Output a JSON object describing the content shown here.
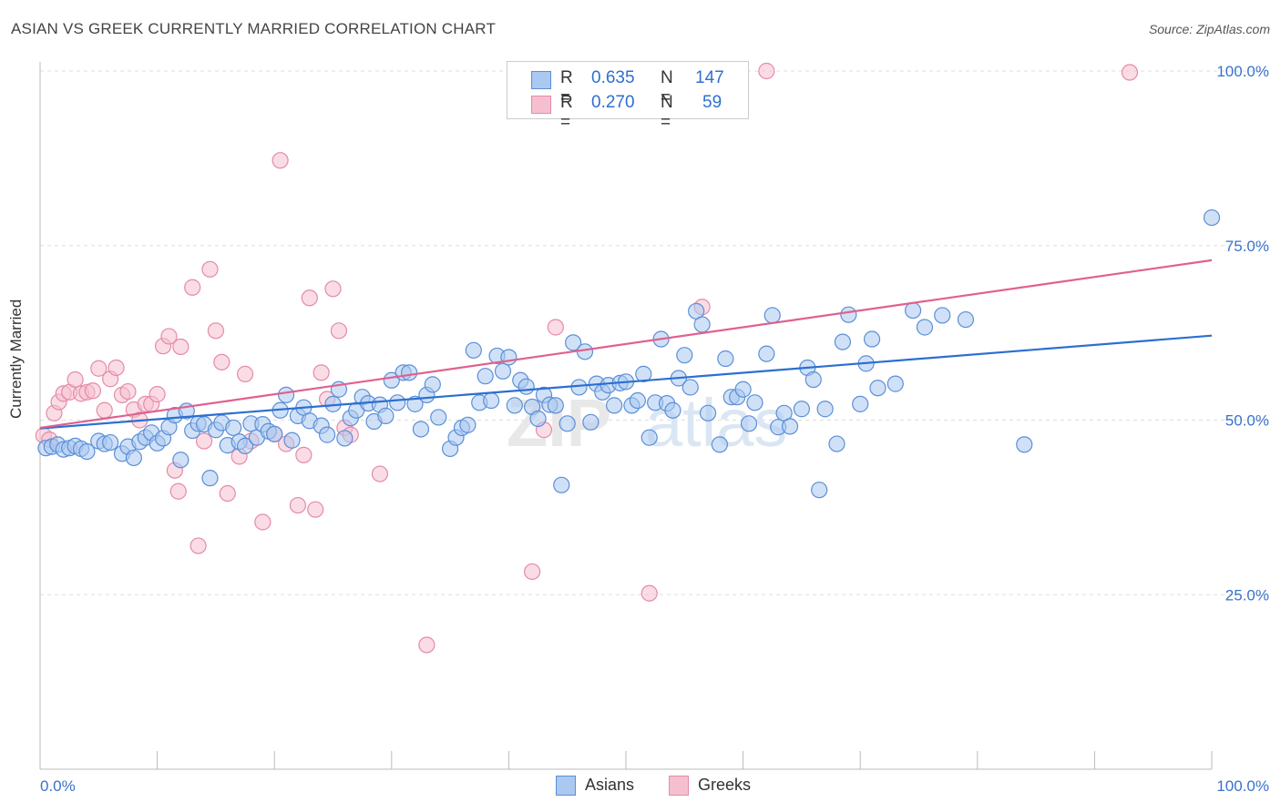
{
  "title": "ASIAN VS GREEK CURRENTLY MARRIED CORRELATION CHART",
  "source": "Source: ZipAtlas.com",
  "watermark": "ZIPatlas",
  "colors": {
    "asian_fill": "#aac8f0",
    "asian_stroke": "#5b8fd8",
    "asian_line": "#2b6fd0",
    "greek_fill": "#f6bfd0",
    "greek_stroke": "#e58aa8",
    "greek_line": "#e0608f",
    "tick_text": "#3a72c9"
  },
  "legend": {
    "rows": [
      {
        "r_label": "R =",
        "r_value": "0.635",
        "n_label": "N =",
        "n_value": "147"
      },
      {
        "r_label": "R =",
        "r_value": "0.270",
        "n_label": "N =",
        "n_value": "59"
      }
    ]
  },
  "bottom_legend": [
    "Asians",
    "Greeks"
  ],
  "chart_data": {
    "type": "scatter",
    "title": "ASIAN VS GREEK CURRENTLY MARRIED CORRELATION CHART",
    "xlabel": "",
    "ylabel": "Currently Married",
    "xlim": [
      0,
      100
    ],
    "ylim": [
      0,
      100
    ],
    "x_tick_labels": [
      "0.0%",
      "100.0%"
    ],
    "y_tick_labels": [
      "25.0%",
      "50.0%",
      "75.0%",
      "100.0%"
    ],
    "y_ticks": [
      25,
      50,
      75,
      100
    ],
    "grid": "horizontal dashed",
    "legend_position": "top-center",
    "series": [
      {
        "name": "Asians",
        "r": 0.635,
        "n": 147,
        "trend": {
          "y_at_0": 48.8,
          "y_at_100": 62.1
        },
        "points": [
          [
            0.5,
            46
          ],
          [
            1,
            46.2
          ],
          [
            1.5,
            46.5
          ],
          [
            2,
            45.8
          ],
          [
            2.5,
            46
          ],
          [
            3,
            46.3
          ],
          [
            3.5,
            45.9
          ],
          [
            4,
            45.5
          ],
          [
            5,
            47
          ],
          [
            5.5,
            46.6
          ],
          [
            6,
            46.8
          ],
          [
            7,
            45.2
          ],
          [
            7.5,
            46.2
          ],
          [
            8,
            44.6
          ],
          [
            8.5,
            46.9
          ],
          [
            9,
            47.5
          ],
          [
            9.5,
            48.2
          ],
          [
            10,
            46.7
          ],
          [
            10.5,
            47.4
          ],
          [
            11,
            49
          ],
          [
            11.5,
            50.7
          ],
          [
            12,
            44.3
          ],
          [
            12.5,
            51.3
          ],
          [
            13,
            48.5
          ],
          [
            13.5,
            49.5
          ],
          [
            14,
            49.4
          ],
          [
            14.5,
            41.7
          ],
          [
            15,
            48.6
          ],
          [
            15.5,
            49.6
          ],
          [
            16,
            46.4
          ],
          [
            16.5,
            48.9
          ],
          [
            17,
            46.9
          ],
          [
            17.5,
            46.3
          ],
          [
            18,
            49.5
          ],
          [
            18.5,
            47.5
          ],
          [
            19,
            49.4
          ],
          [
            19.5,
            48.4
          ],
          [
            20,
            48
          ],
          [
            20.5,
            51.4
          ],
          [
            21,
            53.6
          ],
          [
            21.5,
            47.1
          ],
          [
            22,
            50.6
          ],
          [
            22.5,
            51.8
          ],
          [
            23,
            49.9
          ],
          [
            24,
            49.2
          ],
          [
            24.5,
            47.9
          ],
          [
            25,
            52.3
          ],
          [
            25.5,
            54.4
          ],
          [
            26,
            47.4
          ],
          [
            26.5,
            50.3
          ],
          [
            27,
            51.4
          ],
          [
            27.5,
            53.3
          ],
          [
            28,
            52.4
          ],
          [
            28.5,
            49.8
          ],
          [
            29,
            52.2
          ],
          [
            29.5,
            50.6
          ],
          [
            30,
            55.7
          ],
          [
            30.5,
            52.5
          ],
          [
            31,
            56.8
          ],
          [
            31.5,
            56.8
          ],
          [
            32,
            52.3
          ],
          [
            32.5,
            48.7
          ],
          [
            33,
            53.6
          ],
          [
            33.5,
            55.1
          ],
          [
            34,
            50.4
          ],
          [
            35,
            45.9
          ],
          [
            35.5,
            47.5
          ],
          [
            36,
            48.9
          ],
          [
            36.5,
            49.3
          ],
          [
            37,
            60
          ],
          [
            37.5,
            52.5
          ],
          [
            38,
            56.3
          ],
          [
            38.5,
            52.8
          ],
          [
            39,
            59.2
          ],
          [
            39.5,
            57
          ],
          [
            40,
            59
          ],
          [
            40.5,
            52.1
          ],
          [
            41,
            55.7
          ],
          [
            41.5,
            54.8
          ],
          [
            42,
            51.9
          ],
          [
            42.5,
            50.2
          ],
          [
            43,
            53.6
          ],
          [
            43.5,
            52.2
          ],
          [
            44,
            52.1
          ],
          [
            44.5,
            40.7
          ],
          [
            45,
            49.5
          ],
          [
            45.5,
            61.1
          ],
          [
            46,
            54.7
          ],
          [
            46.5,
            59.8
          ],
          [
            47,
            49.7
          ],
          [
            47.5,
            55.2
          ],
          [
            48,
            54
          ],
          [
            48.5,
            55
          ],
          [
            49,
            52.1
          ],
          [
            49.5,
            55.3
          ],
          [
            50,
            55.5
          ],
          [
            50.5,
            52.1
          ],
          [
            51,
            52.8
          ],
          [
            51.5,
            56.6
          ],
          [
            52,
            47.5
          ],
          [
            52.5,
            52.5
          ],
          [
            53,
            61.6
          ],
          [
            53.5,
            52.4
          ],
          [
            54,
            51.4
          ],
          [
            54.5,
            56
          ],
          [
            55,
            59.3
          ],
          [
            55.5,
            54.7
          ],
          [
            56,
            65.6
          ],
          [
            56.5,
            63.7
          ],
          [
            57,
            51
          ],
          [
            58,
            46.5
          ],
          [
            58.5,
            58.8
          ],
          [
            59,
            53.3
          ],
          [
            59.5,
            53.3
          ],
          [
            60,
            54.4
          ],
          [
            60.5,
            49.5
          ],
          [
            61,
            52.5
          ],
          [
            62,
            59.5
          ],
          [
            62.5,
            65
          ],
          [
            63,
            49
          ],
          [
            63.5,
            51
          ],
          [
            64,
            49.1
          ],
          [
            65,
            51.6
          ],
          [
            65.5,
            57.5
          ],
          [
            66,
            55.8
          ],
          [
            66.5,
            40
          ],
          [
            67,
            51.6
          ],
          [
            68,
            46.6
          ],
          [
            68.5,
            61.2
          ],
          [
            69,
            65.1
          ],
          [
            70,
            52.3
          ],
          [
            70.5,
            58.1
          ],
          [
            71,
            61.6
          ],
          [
            71.5,
            54.6
          ],
          [
            73,
            55.2
          ],
          [
            74.5,
            65.7
          ],
          [
            75.5,
            63.3
          ],
          [
            77,
            65
          ],
          [
            79,
            64.4
          ],
          [
            84,
            46.5
          ],
          [
            100,
            79
          ]
        ]
      },
      {
        "name": "Greeks",
        "r": 0.27,
        "n": 59,
        "trend": {
          "y_at_0": 48.9,
          "y_at_100": 72.9
        },
        "points": [
          [
            0.3,
            47.8
          ],
          [
            0.8,
            47.2
          ],
          [
            1.2,
            51
          ],
          [
            1.6,
            52.6
          ],
          [
            2,
            53.8
          ],
          [
            2.5,
            54
          ],
          [
            3,
            55.8
          ],
          [
            3.5,
            53.8
          ],
          [
            4,
            54
          ],
          [
            4.5,
            54.2
          ],
          [
            5,
            57.4
          ],
          [
            5.5,
            51.4
          ],
          [
            6,
            55.9
          ],
          [
            6.5,
            57.5
          ],
          [
            7,
            53.6
          ],
          [
            7.5,
            54.1
          ],
          [
            8,
            51.5
          ],
          [
            8.5,
            50
          ],
          [
            9,
            52.3
          ],
          [
            9.5,
            52.3
          ],
          [
            10,
            53.7
          ],
          [
            10.5,
            60.6
          ],
          [
            11,
            62
          ],
          [
            11.5,
            42.8
          ],
          [
            11.8,
            39.8
          ],
          [
            12,
            60.5
          ],
          [
            13,
            69
          ],
          [
            13.5,
            32
          ],
          [
            14,
            47
          ],
          [
            14.5,
            71.6
          ],
          [
            15,
            62.8
          ],
          [
            15.5,
            58.3
          ],
          [
            16,
            39.5
          ],
          [
            17,
            44.8
          ],
          [
            17.5,
            56.6
          ],
          [
            18,
            47
          ],
          [
            19,
            35.4
          ],
          [
            20,
            48
          ],
          [
            20.5,
            87.2
          ],
          [
            21,
            46.6
          ],
          [
            22,
            37.8
          ],
          [
            22.5,
            45
          ],
          [
            23,
            67.5
          ],
          [
            23.5,
            37.2
          ],
          [
            24,
            56.8
          ],
          [
            24.5,
            53
          ],
          [
            25,
            68.8
          ],
          [
            25.5,
            62.8
          ],
          [
            26,
            48.9
          ],
          [
            26.5,
            47.9
          ],
          [
            29,
            42.3
          ],
          [
            33,
            17.8
          ],
          [
            42,
            28.3
          ],
          [
            43,
            48.6
          ],
          [
            44,
            63.3
          ],
          [
            52,
            25.2
          ],
          [
            56.5,
            66.2
          ],
          [
            62,
            100
          ],
          [
            93,
            99.8
          ]
        ]
      }
    ]
  }
}
